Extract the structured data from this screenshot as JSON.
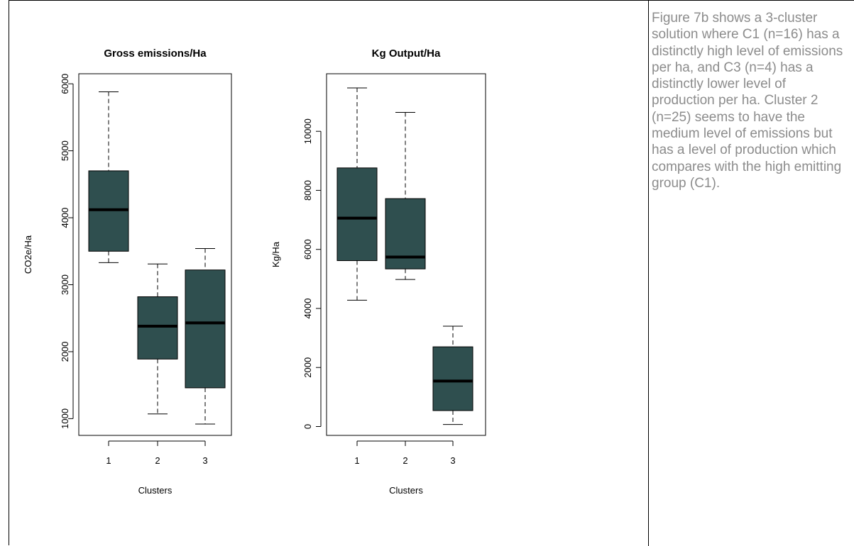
{
  "chart_data": [
    {
      "type": "boxplot",
      "title": "Gross emissions/Ha",
      "xlabel": "Clusters",
      "ylabel": "CO2e/Ha",
      "ylim": [
        750,
        6150
      ],
      "yticks": [
        1000,
        2000,
        3000,
        4000,
        5000,
        6000
      ],
      "categories": [
        "1",
        "2",
        "3"
      ],
      "boxes": [
        {
          "min": 3330,
          "q1": 3500,
          "median": 4120,
          "q3": 4700,
          "max": 5880
        },
        {
          "min": 1070,
          "q1": 1890,
          "median": 2380,
          "q3": 2820,
          "max": 3310
        },
        {
          "min": 920,
          "q1": 1460,
          "median": 2430,
          "q3": 3220,
          "max": 3540
        }
      ],
      "fill": "#2f4f4f"
    },
    {
      "type": "boxplot",
      "title": "Kg Output/Ha",
      "xlabel": "Clusters",
      "ylabel": "Kg/Ha",
      "ylim": [
        -300,
        11950
      ],
      "yticks": [
        0,
        2000,
        4000,
        6000,
        8000,
        10000
      ],
      "categories": [
        "1",
        "2",
        "3"
      ],
      "boxes": [
        {
          "min": 4280,
          "q1": 5620,
          "median": 7060,
          "q3": 8760,
          "max": 11470
        },
        {
          "min": 4980,
          "q1": 5340,
          "median": 5740,
          "q3": 7720,
          "max": 10640
        },
        {
          "min": 70,
          "q1": 540,
          "median": 1540,
          "q3": 2700,
          "max": 3400
        }
      ],
      "fill": "#2f4f4f"
    }
  ],
  "caption": {
    "text": "Figure 7b shows a 3-cluster solution where C1 (n=16) has a distinctly high level of emissions per ha, and C3 (n=4) has a distinctly lower level of production per ha. Cluster 2 (n=25) seems to have the medium level of emissions but has a level of production which compares with the high emitting group (C1)."
  }
}
